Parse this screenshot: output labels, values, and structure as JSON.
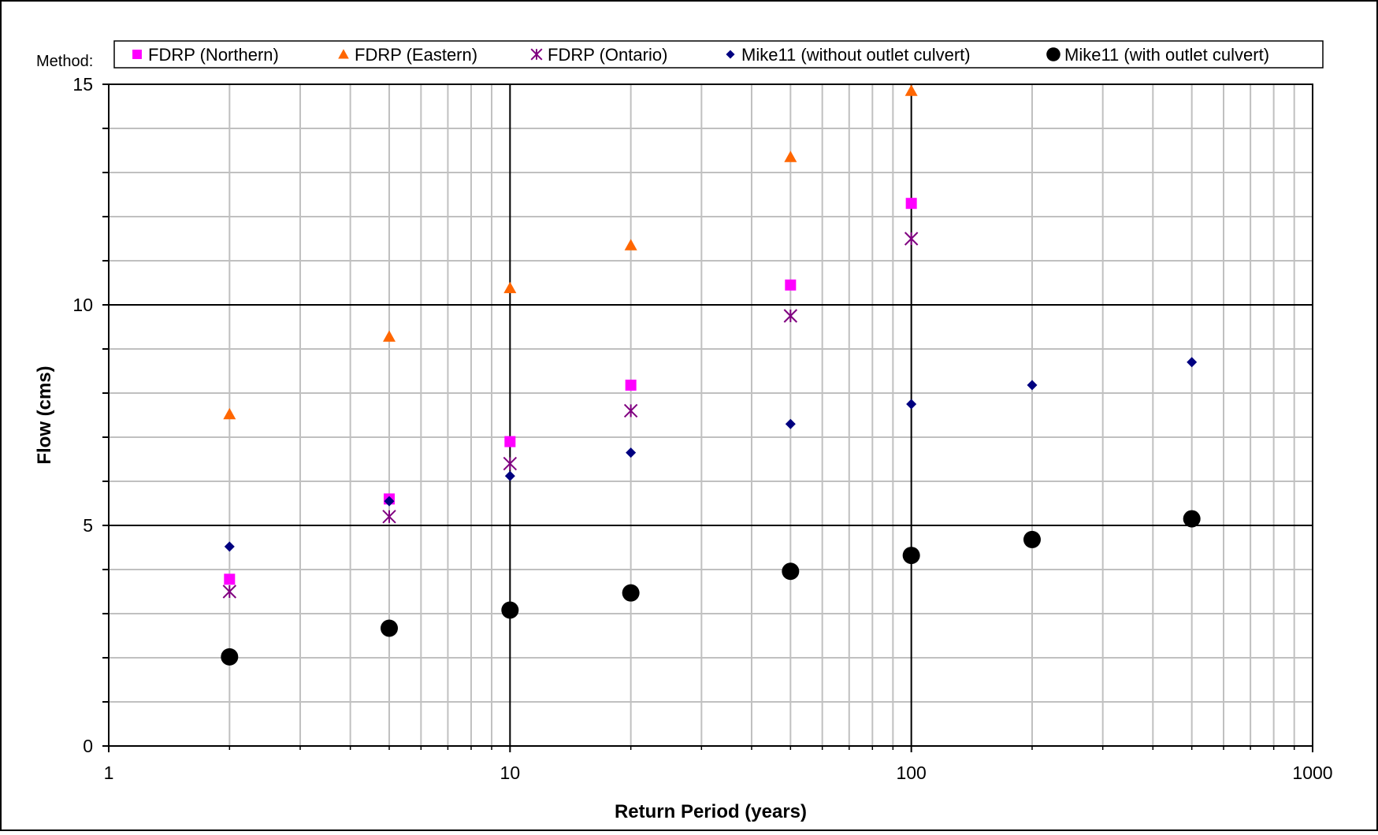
{
  "chart_data": {
    "type": "scatter",
    "xlabel": "Return Period (years)",
    "ylabel": "Flow (cms)",
    "x_scale": "log",
    "xlim": [
      1,
      1000
    ],
    "ylim": [
      0,
      15
    ],
    "x_ticks": [
      "1",
      "10",
      "100",
      "1000"
    ],
    "y_ticks": [
      "0",
      "5",
      "10",
      "15"
    ],
    "grid": true,
    "legend_title": "Method:",
    "legend_position": "top",
    "series": [
      {
        "name": "FDRP (Northern)",
        "marker": "square",
        "color": "#ff00ff",
        "points": [
          [
            2,
            3.78
          ],
          [
            5,
            5.6
          ],
          [
            10,
            6.9
          ],
          [
            20,
            8.18
          ],
          [
            50,
            10.45
          ],
          [
            100,
            12.3
          ]
        ]
      },
      {
        "name": "FDRP (Eastern)",
        "marker": "triangle",
        "color": "#ff6600",
        "points": [
          [
            2,
            7.52
          ],
          [
            5,
            9.28
          ],
          [
            10,
            10.38
          ],
          [
            20,
            11.35
          ],
          [
            50,
            13.35
          ],
          [
            100,
            14.85
          ]
        ]
      },
      {
        "name": "FDRP (Ontario)",
        "marker": "asterisk",
        "color": "#800080",
        "points": [
          [
            2,
            3.5
          ],
          [
            5,
            5.2
          ],
          [
            10,
            6.4
          ],
          [
            20,
            7.6
          ],
          [
            50,
            9.75
          ],
          [
            100,
            11.5
          ]
        ]
      },
      {
        "name": "Mike11 (without outlet culvert)",
        "marker": "diamond",
        "color": "#000080",
        "points": [
          [
            2,
            4.52
          ],
          [
            5,
            5.55
          ],
          [
            10,
            6.12
          ],
          [
            20,
            6.65
          ],
          [
            50,
            7.3
          ],
          [
            100,
            7.75
          ],
          [
            200,
            8.18
          ],
          [
            500,
            8.7
          ]
        ]
      },
      {
        "name": "Mike11 (with outlet culvert)",
        "marker": "circle",
        "color": "#000000",
        "points": [
          [
            2,
            2.02
          ],
          [
            5,
            2.67
          ],
          [
            10,
            3.08
          ],
          [
            20,
            3.47
          ],
          [
            50,
            3.96
          ],
          [
            100,
            4.32
          ],
          [
            200,
            4.68
          ],
          [
            500,
            5.15
          ]
        ]
      }
    ]
  }
}
